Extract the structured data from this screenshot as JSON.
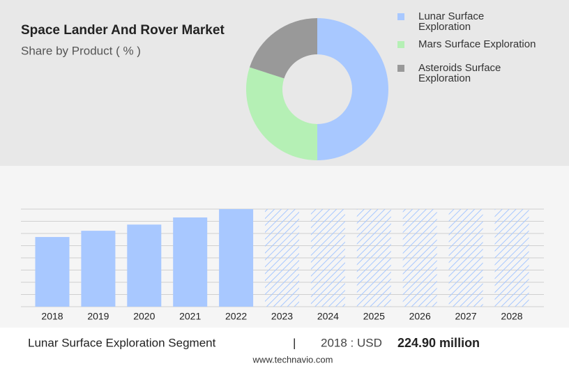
{
  "chart_data": [
    {
      "type": "donut",
      "title": "Space Lander And Rover Market",
      "subtitle": "Share by Product ( % )",
      "categories": [
        "Lunar Surface Exploration",
        "Mars Surface Exploration",
        "Asteroids Surface Exploration"
      ],
      "values": [
        50,
        30,
        20
      ],
      "colors": [
        "#a8c8ff",
        "#b5f0b5",
        "#999999"
      ]
    },
    {
      "type": "bar",
      "categories": [
        "2018",
        "2019",
        "2020",
        "2021",
        "2022",
        "2023",
        "2024",
        "2025",
        "2026",
        "2027",
        "2028"
      ],
      "values": [
        224.9,
        245,
        265,
        288,
        315,
        null,
        null,
        null,
        null,
        null,
        null
      ],
      "color": "#a8c8ff",
      "ylim": [
        0,
        315
      ]
    }
  ],
  "footer": {
    "segment": "Lunar Surface Exploration Segment",
    "separator": "|",
    "year_label": "2018 : USD",
    "value_label": "224.90 million",
    "source": "www.technavio.com"
  }
}
